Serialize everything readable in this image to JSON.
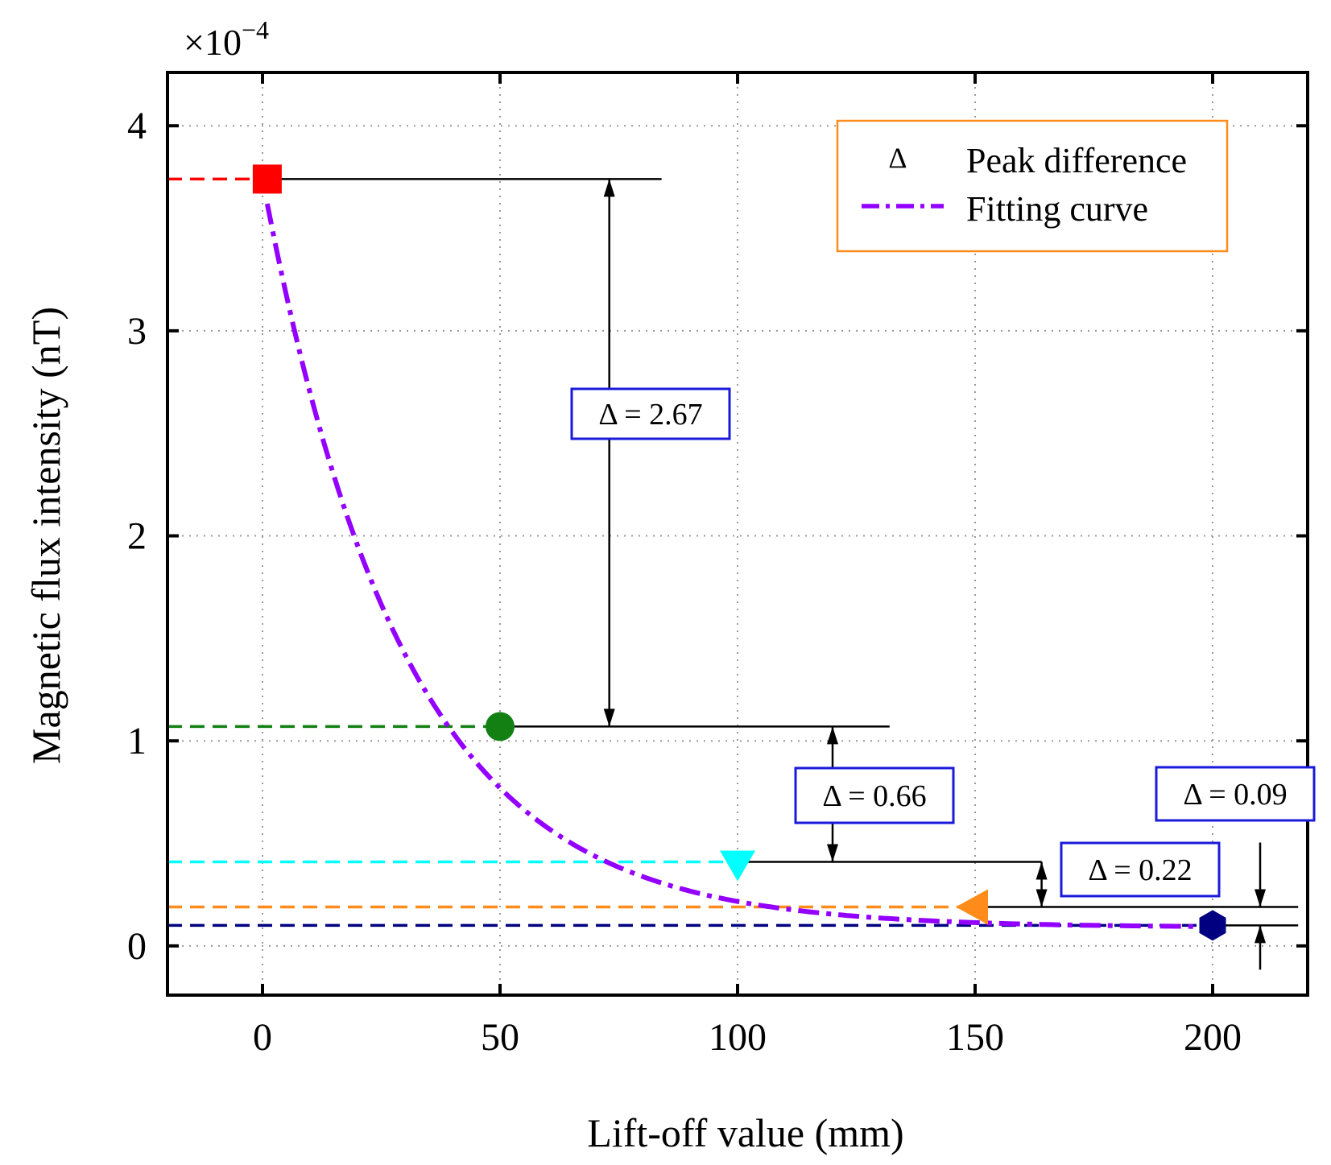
{
  "chart_data": {
    "type": "scatter",
    "exponent_label": "×10",
    "exponent_power": "−4",
    "xlabel": "Lift-off value (mm)",
    "ylabel": "Magnetic flux intensity (nT)",
    "xlim": [
      -20,
      220
    ],
    "ylim": [
      -0.24,
      4.26
    ],
    "xticks": [
      0,
      50,
      100,
      150,
      200
    ],
    "yticks": [
      0,
      1,
      2,
      3,
      4
    ],
    "grid": true,
    "points": [
      {
        "x": 1,
        "y": 3.74,
        "marker": "square",
        "color": "#ff0000"
      },
      {
        "x": 50,
        "y": 1.07,
        "marker": "circle",
        "color": "#138013"
      },
      {
        "x": 100,
        "y": 0.41,
        "marker": "triangle-down",
        "color": "#00ffff"
      },
      {
        "x": 150,
        "y": 0.19,
        "marker": "triangle-left",
        "color": "#ff8c1a"
      },
      {
        "x": 200,
        "y": 0.1,
        "marker": "hexagon",
        "color": "#000080"
      }
    ],
    "fit_curve": {
      "name": "Fitting curve",
      "color": "#9400ff",
      "model": "y = 0.09 + 3.65*exp(-0.0336*x)",
      "x_range": [
        1,
        200
      ]
    },
    "annotations": [
      {
        "label": "Δ = 2.67",
        "x": 73,
        "y_top": 3.74,
        "y_bottom": 1.07
      },
      {
        "label": "Δ = 0.66",
        "x": 120,
        "y_top": 1.07,
        "y_bottom": 0.41
      },
      {
        "label": "Δ = 0.22",
        "x": 164,
        "y_top": 0.41,
        "y_bottom": 0.19
      },
      {
        "label": "Δ = 0.09",
        "x": 210,
        "y_top": 0.19,
        "y_bottom": 0.1
      }
    ],
    "legend": {
      "position": "top-right",
      "border_color": "#ff8c1a",
      "entries": [
        {
          "symbol": "Δ",
          "label": "Peak difference"
        },
        {
          "symbol": "dash-dot",
          "label": "Fitting curve"
        }
      ]
    }
  }
}
